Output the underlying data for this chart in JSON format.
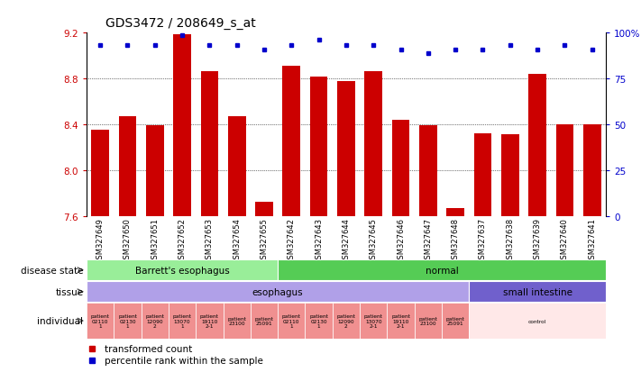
{
  "title": "GDS3472 / 208649_s_at",
  "samples": [
    "GSM327649",
    "GSM327650",
    "GSM327651",
    "GSM327652",
    "GSM327653",
    "GSM327654",
    "GSM327655",
    "GSM327642",
    "GSM327643",
    "GSM327644",
    "GSM327645",
    "GSM327646",
    "GSM327647",
    "GSM327648",
    "GSM327637",
    "GSM327638",
    "GSM327639",
    "GSM327640",
    "GSM327641"
  ],
  "bar_values": [
    8.35,
    8.47,
    8.39,
    9.19,
    8.86,
    8.47,
    7.72,
    8.91,
    8.82,
    8.78,
    8.86,
    8.44,
    8.39,
    7.67,
    8.32,
    8.31,
    8.84,
    8.4,
    8.4
  ],
  "percentile_values": [
    9.09,
    9.09,
    9.09,
    9.18,
    9.09,
    9.09,
    9.05,
    9.09,
    9.14,
    9.09,
    9.09,
    9.05,
    9.02,
    9.05,
    9.05,
    9.09,
    9.05,
    9.09,
    9.05
  ],
  "ylim_left": [
    7.6,
    9.2
  ],
  "yticks_left": [
    7.6,
    8.0,
    8.4,
    8.8,
    9.2
  ],
  "ytick_labels_right": [
    "0",
    "25",
    "50",
    "75",
    "100%"
  ],
  "yticks_right_vals": [
    7.6,
    8.0,
    8.4,
    8.8,
    9.2
  ],
  "bar_color": "#cc0000",
  "dot_color": "#0000cc",
  "chart_bg": "#ffffff",
  "xtick_bg": "#d0d0d0",
  "disease_states": [
    {
      "label": "Barrett's esophagus",
      "start": 0,
      "end": 7,
      "color": "#99ee99"
    },
    {
      "label": "normal",
      "start": 7,
      "end": 19,
      "color": "#55cc55"
    }
  ],
  "tissues": [
    {
      "label": "esophagus",
      "start": 0,
      "end": 14,
      "color": "#b0a0e8"
    },
    {
      "label": "small intestine",
      "start": 14,
      "end": 19,
      "color": "#7060cc"
    }
  ],
  "individuals": [
    {
      "label": "patient\n02110\n1",
      "start": 0,
      "end": 1,
      "color": "#f09090"
    },
    {
      "label": "patient\n02130\n1",
      "start": 1,
      "end": 2,
      "color": "#f09090"
    },
    {
      "label": "patient\n12090\n2",
      "start": 2,
      "end": 3,
      "color": "#f09090"
    },
    {
      "label": "patient\n13070\n1",
      "start": 3,
      "end": 4,
      "color": "#f09090"
    },
    {
      "label": "patient\n19110\n2-1",
      "start": 4,
      "end": 5,
      "color": "#f09090"
    },
    {
      "label": "patient\n23100",
      "start": 5,
      "end": 6,
      "color": "#f09090"
    },
    {
      "label": "patient\n25091",
      "start": 6,
      "end": 7,
      "color": "#f09090"
    },
    {
      "label": "patient\n02110\n1",
      "start": 7,
      "end": 8,
      "color": "#f09090"
    },
    {
      "label": "patient\n02130\n1",
      "start": 8,
      "end": 9,
      "color": "#f09090"
    },
    {
      "label": "patient\n12090\n2",
      "start": 9,
      "end": 10,
      "color": "#f09090"
    },
    {
      "label": "patient\n13070\n2-1",
      "start": 10,
      "end": 11,
      "color": "#f09090"
    },
    {
      "label": "patient\n19110\n2-1",
      "start": 11,
      "end": 12,
      "color": "#f09090"
    },
    {
      "label": "patient\n23100",
      "start": 12,
      "end": 13,
      "color": "#f09090"
    },
    {
      "label": "patient\n25091",
      "start": 13,
      "end": 14,
      "color": "#f09090"
    },
    {
      "label": "control",
      "start": 14,
      "end": 19,
      "color": "#ffe8e8"
    }
  ],
  "legend_items": [
    {
      "label": "transformed count",
      "color": "#cc0000"
    },
    {
      "label": "percentile rank within the sample",
      "color": "#0000cc"
    }
  ]
}
